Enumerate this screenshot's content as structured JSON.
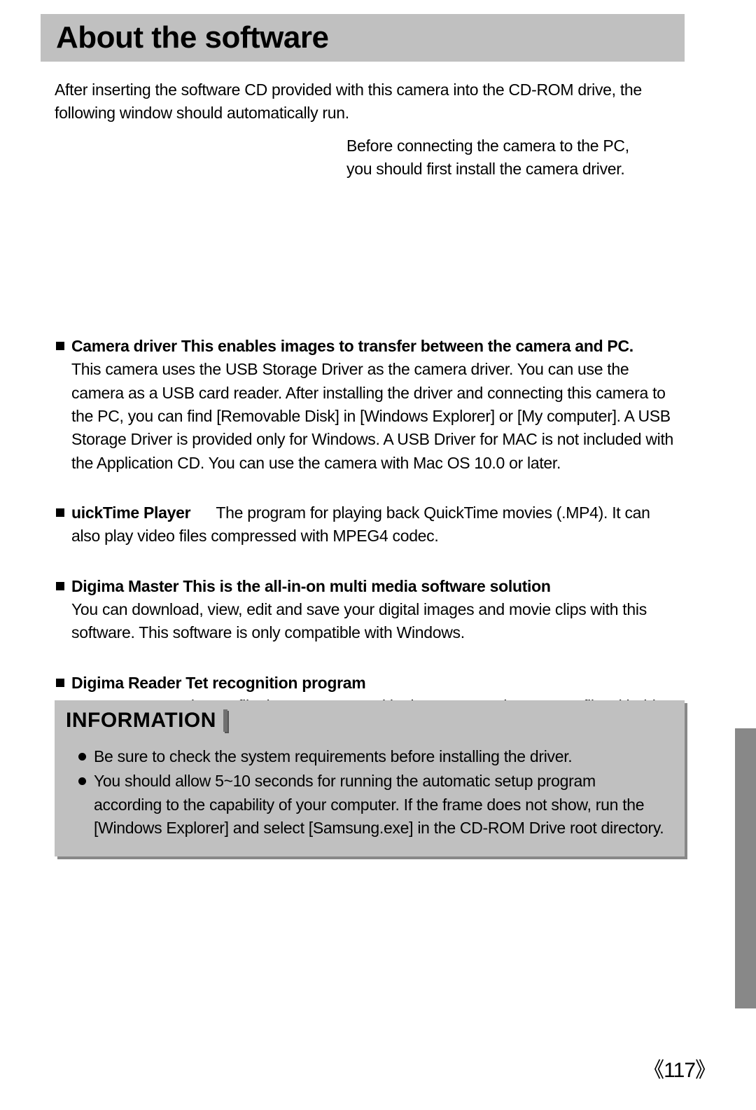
{
  "title": "About the software",
  "intro": "After inserting the software CD provided with this camera into the CD-ROM drive, the following window should automatically run.",
  "right_note": "Before connecting the camera to the PC, you should first install the camera driver.",
  "bullets": [
    {
      "heading": "Camera driver  This enables images to transfer between the camera and PC.",
      "body": "This camera uses the USB Storage Driver as the camera driver. You can use the camera as a USB card reader. After installing the driver and connecting this camera to the PC, you can find [Removable Disk] in [Windows Explorer] or [My computer]. A USB Storage Driver is provided only for Windows. A USB Driver for MAC is not included with the Application CD. You can use the camera with Mac OS 10.0 or later."
    },
    {
      "heading": "uickTime Player",
      "inline_gap": "      ",
      "body_inline": "The program for playing back QuickTime movies (.MP4). It can also play video files compressed with MPEG4 codec."
    },
    {
      "heading": "Digima  Master  This is the all-in-on  multi media software solution",
      "body": "You can download, view, edit and save your digital images and movie clips with this software. This software is only compatible with Windows."
    },
    {
      "heading": "Digima  Reader  Tet recognition program",
      "body": "You can save an image file that was captured in the TEXT mode as a text file with this program. This software is only compatible with Windows."
    }
  ],
  "info": {
    "title": "INFORMATION",
    "items": [
      "Be sure to check the system requirements before installing the driver.",
      "You should allow 5~10 seconds for running the automatic setup program according to the capability of your computer. If the frame does not show, run the [Windows Explorer] and select [Samsung.exe] in the CD-ROM Drive root directory."
    ]
  },
  "page_number": "《117》",
  "colors": {
    "title_bar_bg": "#c0c0c0",
    "side_tab_left": "#b8b8b8",
    "side_tab_right": "#888888",
    "info_shadow": "#888888",
    "text": "#000000",
    "page_bg": "#ffffff"
  }
}
